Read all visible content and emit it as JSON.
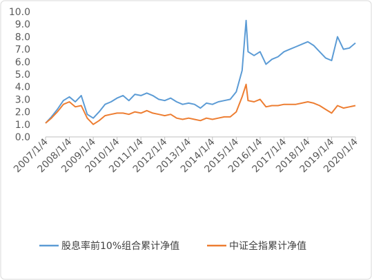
{
  "chart_data": {
    "type": "line",
    "x": [
      "2007/1/4",
      "2007/4/4",
      "2007/7/4",
      "2007/10/4",
      "2008/1/4",
      "2008/4/4",
      "2008/7/4",
      "2008/10/4",
      "2009/1/4",
      "2009/4/4",
      "2009/7/4",
      "2009/10/4",
      "2010/1/4",
      "2010/4/4",
      "2010/7/4",
      "2010/10/4",
      "2011/1/4",
      "2011/4/4",
      "2011/7/4",
      "2011/10/4",
      "2012/1/4",
      "2012/4/4",
      "2012/7/4",
      "2012/10/4",
      "2013/1/4",
      "2013/4/4",
      "2013/7/4",
      "2013/10/4",
      "2014/1/4",
      "2014/4/4",
      "2014/7/4",
      "2014/10/4",
      "2015/1/4",
      "2015/4/4",
      "2015/6/4",
      "2015/7/4",
      "2015/10/4",
      "2016/1/4",
      "2016/4/4",
      "2016/7/4",
      "2016/10/4",
      "2017/1/4",
      "2017/4/4",
      "2017/7/4",
      "2017/10/4",
      "2018/1/4",
      "2018/4/4",
      "2018/7/4",
      "2018/10/4",
      "2019/1/4",
      "2019/4/4",
      "2019/7/4",
      "2019/10/4",
      "2020/1/4"
    ],
    "series": [
      {
        "name": "股息率前10%组合累计净值",
        "color": "#5b9bd5",
        "values": [
          1.1,
          1.6,
          2.2,
          2.9,
          3.2,
          2.8,
          3.3,
          1.8,
          1.5,
          2.0,
          2.6,
          2.8,
          3.1,
          3.3,
          2.9,
          3.4,
          3.3,
          3.5,
          3.3,
          3.0,
          2.9,
          3.1,
          2.8,
          2.6,
          2.7,
          2.6,
          2.3,
          2.7,
          2.6,
          2.8,
          2.9,
          3.0,
          3.6,
          5.3,
          9.3,
          6.8,
          6.5,
          6.8,
          5.8,
          6.2,
          6.4,
          6.8,
          7.0,
          7.2,
          7.4,
          7.6,
          7.3,
          6.8,
          6.3,
          6.1,
          8.0,
          7.0,
          7.1,
          7.5
        ]
      },
      {
        "name": "中证全指累计净值",
        "color": "#ed7d31",
        "values": [
          1.1,
          1.5,
          2.0,
          2.6,
          2.8,
          2.4,
          2.5,
          1.5,
          1.0,
          1.3,
          1.7,
          1.8,
          1.9,
          1.9,
          1.8,
          2.0,
          1.9,
          2.1,
          1.9,
          1.8,
          1.7,
          1.8,
          1.5,
          1.4,
          1.5,
          1.4,
          1.3,
          1.5,
          1.4,
          1.5,
          1.6,
          1.6,
          2.0,
          3.2,
          4.2,
          2.9,
          2.8,
          3.0,
          2.4,
          2.5,
          2.5,
          2.6,
          2.6,
          2.6,
          2.7,
          2.8,
          2.7,
          2.5,
          2.2,
          1.9,
          2.5,
          2.3,
          2.4,
          2.5
        ]
      }
    ],
    "xlim": [
      "2007/1/4",
      "2020/1/4"
    ],
    "xticks": [
      "2007/1/4",
      "2008/1/4",
      "2009/1/4",
      "2010/1/4",
      "2011/1/4",
      "2012/1/4",
      "2013/1/4",
      "2014/1/4",
      "2015/1/4",
      "2016/1/4",
      "2017/1/4",
      "2018/1/4",
      "2019/1/4",
      "2020/1/4"
    ],
    "ylim": [
      0,
      10
    ],
    "yticks": [
      {
        "value": 0,
        "label": "0.0"
      },
      {
        "value": 1,
        "label": "1.0"
      },
      {
        "value": 2,
        "label": "2.0"
      },
      {
        "value": 3,
        "label": "3.0"
      },
      {
        "value": 4,
        "label": "4.0"
      },
      {
        "value": 5,
        "label": "5.0"
      },
      {
        "value": 6,
        "label": "6.0"
      },
      {
        "value": 7,
        "label": "7.0"
      },
      {
        "value": 8,
        "label": "8.0"
      },
      {
        "value": 9,
        "label": "9.0"
      },
      {
        "value": 10,
        "label": "10.0"
      }
    ],
    "grid": false,
    "legend": "bottom"
  }
}
